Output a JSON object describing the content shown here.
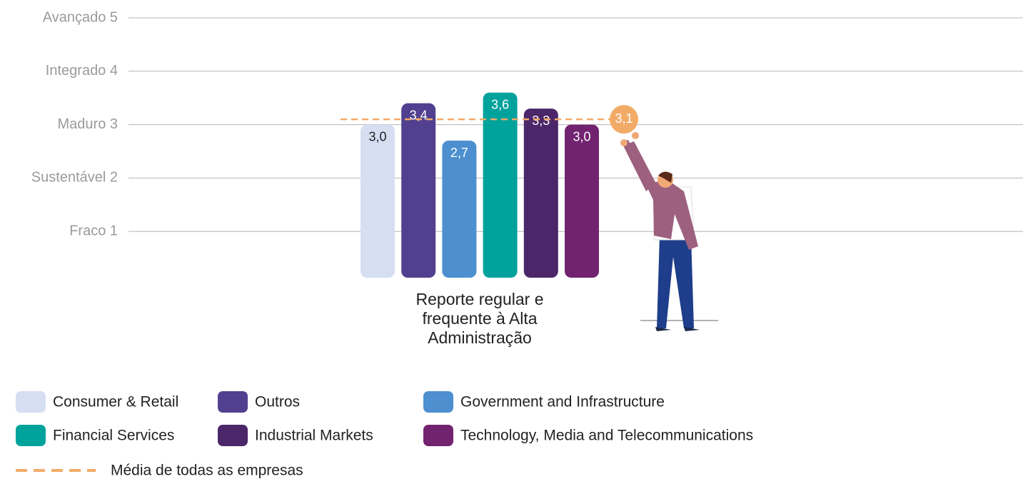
{
  "chart_data": {
    "type": "bar",
    "categories": [
      "Reporte regular e frequente à Alta Administração"
    ],
    "series": [
      {
        "name": "Consumer & Retail",
        "color": "#d6def2",
        "values": [
          3.0
        ],
        "value_labels": [
          "3,0"
        ]
      },
      {
        "name": "Outros",
        "color": "#51408f",
        "values": [
          3.4
        ],
        "value_labels": [
          "3,4"
        ]
      },
      {
        "name": "Government and Infrastructure",
        "color": "#4d8fcf",
        "values": [
          2.7
        ],
        "value_labels": [
          "2,7"
        ]
      },
      {
        "name": "Financial Services",
        "color": "#00a29c",
        "values": [
          3.6
        ],
        "value_labels": [
          "3,6"
        ]
      },
      {
        "name": "Industrial Markets",
        "color": "#4b2669",
        "values": [
          3.3
        ],
        "value_labels": [
          "3,3"
        ]
      },
      {
        "name": "Technology, Media and Telecommunications",
        "color": "#722370",
        "values": [
          3.0
        ],
        "value_labels": [
          "3,0"
        ]
      }
    ],
    "average": {
      "name": "Média de todas as empresas",
      "value": 3.1,
      "label": "3,1",
      "color": "#f2ab67"
    },
    "ylim": [
      0,
      5
    ],
    "yticks": [
      {
        "value": 1,
        "label": "Fraco 1"
      },
      {
        "value": 2,
        "label": "Sustentável 2"
      },
      {
        "value": 3,
        "label": "Maduro 3"
      },
      {
        "value": 4,
        "label": "Integrado 4"
      },
      {
        "value": 5,
        "label": "Avançado 5"
      }
    ],
    "grid": true
  }
}
